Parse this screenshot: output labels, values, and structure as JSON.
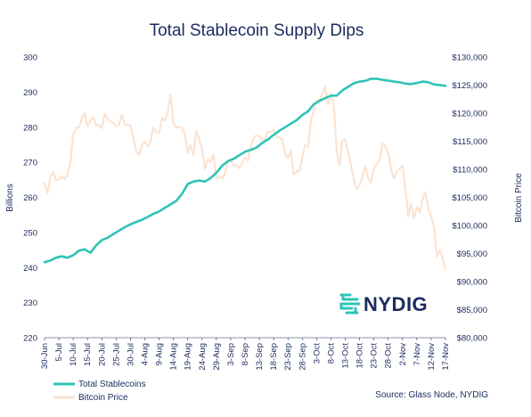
{
  "chart_data": {
    "type": "line",
    "title": "Total Stablecoin Supply Dips",
    "y_left_label": "Billions",
    "y_right_label": "Bitcoin Price",
    "y_left_range": [
      220,
      300
    ],
    "y_right_range": [
      80000,
      130000
    ],
    "y_left_ticks": [
      "220",
      "230",
      "240",
      "250",
      "260",
      "270",
      "280",
      "290",
      "300"
    ],
    "y_right_ticks": [
      "$80,000",
      "$85,000",
      "$90,000",
      "$95,000",
      "$100,000",
      "$105,000",
      "$110,000",
      "$115,000",
      "$120,000",
      "$125,000",
      "$130,000"
    ],
    "x_ticks": [
      "30-Jun",
      "5-Jul",
      "10-Jul",
      "15-Jul",
      "20-Jul",
      "25-Jul",
      "30-Jul",
      "4-Aug",
      "9-Aug",
      "14-Aug",
      "19-Aug",
      "24-Aug",
      "29-Aug",
      "3-Sep",
      "8-Sep",
      "13-Sep",
      "18-Sep",
      "23-Sep",
      "28-Sep",
      "3-Oct",
      "8-Oct",
      "13-Oct",
      "18-Oct",
      "23-Oct",
      "28-Oct",
      "2-Nov",
      "7-Nov",
      "12-Nov",
      "17-Nov"
    ],
    "x_start": "2025-06-30",
    "x_end": "2025-11-17",
    "grid": false,
    "legend_position": "bottom-left",
    "series": [
      {
        "name": "Total Stablecoins",
        "axis": "left",
        "color": "#2ec4b6",
        "points": [
          [
            "2025-06-30",
            241.5
          ],
          [
            "2025-07-02",
            242.0
          ],
          [
            "2025-07-04",
            242.8
          ],
          [
            "2025-07-06",
            243.2
          ],
          [
            "2025-07-08",
            242.8
          ],
          [
            "2025-07-10",
            243.5
          ],
          [
            "2025-07-12",
            244.8
          ],
          [
            "2025-07-14",
            245.2
          ],
          [
            "2025-07-16",
            244.2
          ],
          [
            "2025-07-18",
            246.3
          ],
          [
            "2025-07-20",
            247.8
          ],
          [
            "2025-07-22",
            248.5
          ],
          [
            "2025-07-24",
            249.5
          ],
          [
            "2025-07-26",
            250.5
          ],
          [
            "2025-07-28",
            251.5
          ],
          [
            "2025-07-30",
            252.3
          ],
          [
            "2025-08-01",
            253.0
          ],
          [
            "2025-08-03",
            253.6
          ],
          [
            "2025-08-05",
            254.4
          ],
          [
            "2025-08-07",
            255.3
          ],
          [
            "2025-08-09",
            256.0
          ],
          [
            "2025-08-11",
            257.0
          ],
          [
            "2025-08-13",
            258.0
          ],
          [
            "2025-08-15",
            259.0
          ],
          [
            "2025-08-17",
            261.0
          ],
          [
            "2025-08-19",
            263.8
          ],
          [
            "2025-08-21",
            264.5
          ],
          [
            "2025-08-23",
            264.8
          ],
          [
            "2025-08-25",
            264.5
          ],
          [
            "2025-08-27",
            265.5
          ],
          [
            "2025-08-29",
            267.0
          ],
          [
            "2025-08-31",
            269.0
          ],
          [
            "2025-09-02",
            270.3
          ],
          [
            "2025-09-04",
            271.0
          ],
          [
            "2025-09-06",
            272.0
          ],
          [
            "2025-09-08",
            273.0
          ],
          [
            "2025-09-10",
            273.5
          ],
          [
            "2025-09-12",
            274.2
          ],
          [
            "2025-09-14",
            275.5
          ],
          [
            "2025-09-16",
            276.5
          ],
          [
            "2025-09-18",
            277.8
          ],
          [
            "2025-09-20",
            279.0
          ],
          [
            "2025-09-22",
            280.0
          ],
          [
            "2025-09-24",
            281.0
          ],
          [
            "2025-09-26",
            282.0
          ],
          [
            "2025-09-28",
            283.5
          ],
          [
            "2025-09-30",
            284.5
          ],
          [
            "2025-10-02",
            286.5
          ],
          [
            "2025-10-04",
            287.5
          ],
          [
            "2025-10-06",
            288.3
          ],
          [
            "2025-10-08",
            289.0
          ],
          [
            "2025-10-10",
            289.0
          ],
          [
            "2025-10-12",
            290.5
          ],
          [
            "2025-10-14",
            291.5
          ],
          [
            "2025-10-16",
            292.5
          ],
          [
            "2025-10-18",
            293.0
          ],
          [
            "2025-10-20",
            293.2
          ],
          [
            "2025-10-22",
            293.8
          ],
          [
            "2025-10-24",
            293.8
          ],
          [
            "2025-10-26",
            293.5
          ],
          [
            "2025-10-28",
            293.3
          ],
          [
            "2025-10-30",
            293.0
          ],
          [
            "2025-11-01",
            292.8
          ],
          [
            "2025-11-03",
            292.4
          ],
          [
            "2025-11-05",
            292.3
          ],
          [
            "2025-11-07",
            292.6
          ],
          [
            "2025-11-09",
            293.0
          ],
          [
            "2025-11-11",
            292.8
          ],
          [
            "2025-11-13",
            292.2
          ],
          [
            "2025-11-15",
            292.0
          ],
          [
            "2025-11-17",
            291.8
          ]
        ]
      },
      {
        "name": "Bitcoin Price",
        "axis": "right",
        "color": "#fbe3d2",
        "points": [
          [
            "2025-06-30",
            107500
          ],
          [
            "2025-07-01",
            105800
          ],
          [
            "2025-07-02",
            108600
          ],
          [
            "2025-07-03",
            109500
          ],
          [
            "2025-07-04",
            108000
          ],
          [
            "2025-07-05",
            108200
          ],
          [
            "2025-07-06",
            108800
          ],
          [
            "2025-07-07",
            108300
          ],
          [
            "2025-07-08",
            108900
          ],
          [
            "2025-07-09",
            111200
          ],
          [
            "2025-07-10",
            116000
          ],
          [
            "2025-07-11",
            117500
          ],
          [
            "2025-07-12",
            117400
          ],
          [
            "2025-07-13",
            119000
          ],
          [
            "2025-07-14",
            120000
          ],
          [
            "2025-07-15",
            117700
          ],
          [
            "2025-07-16",
            118700
          ],
          [
            "2025-07-17",
            119300
          ],
          [
            "2025-07-18",
            117900
          ],
          [
            "2025-07-19",
            117800
          ],
          [
            "2025-07-20",
            117300
          ],
          [
            "2025-07-21",
            119900
          ],
          [
            "2025-07-22",
            119000
          ],
          [
            "2025-07-23",
            118500
          ],
          [
            "2025-07-24",
            118300
          ],
          [
            "2025-07-25",
            117600
          ],
          [
            "2025-07-26",
            118000
          ],
          [
            "2025-07-27",
            119700
          ],
          [
            "2025-07-28",
            118000
          ],
          [
            "2025-07-29",
            117900
          ],
          [
            "2025-07-30",
            117800
          ],
          [
            "2025-07-31",
            115700
          ],
          [
            "2025-08-01",
            113200
          ],
          [
            "2025-08-02",
            112500
          ],
          [
            "2025-08-03",
            114200
          ],
          [
            "2025-08-04",
            115000
          ],
          [
            "2025-08-05",
            114000
          ],
          [
            "2025-08-06",
            114900
          ],
          [
            "2025-08-07",
            117500
          ],
          [
            "2025-08-08",
            116600
          ],
          [
            "2025-08-09",
            116500
          ],
          [
            "2025-08-10",
            119200
          ],
          [
            "2025-08-11",
            118700
          ],
          [
            "2025-08-12",
            120100
          ],
          [
            "2025-08-13",
            123300
          ],
          [
            "2025-08-14",
            118300
          ],
          [
            "2025-08-15",
            117400
          ],
          [
            "2025-08-16",
            117500
          ],
          [
            "2025-08-17",
            117400
          ],
          [
            "2025-08-18",
            116200
          ],
          [
            "2025-08-19",
            112900
          ],
          [
            "2025-08-20",
            114300
          ],
          [
            "2025-08-21",
            112500
          ],
          [
            "2025-08-22",
            116900
          ],
          [
            "2025-08-23",
            115400
          ],
          [
            "2025-08-24",
            113500
          ],
          [
            "2025-08-25",
            110100
          ],
          [
            "2025-08-26",
            111800
          ],
          [
            "2025-08-27",
            111300
          ],
          [
            "2025-08-28",
            112600
          ],
          [
            "2025-08-29",
            108400
          ],
          [
            "2025-08-30",
            108800
          ],
          [
            "2025-08-31",
            108300
          ],
          [
            "2025-09-01",
            109300
          ],
          [
            "2025-09-02",
            111200
          ],
          [
            "2025-09-03",
            111700
          ],
          [
            "2025-09-04",
            110700
          ],
          [
            "2025-09-05",
            110700
          ],
          [
            "2025-09-06",
            110200
          ],
          [
            "2025-09-07",
            111200
          ],
          [
            "2025-09-08",
            112100
          ],
          [
            "2025-09-09",
            111500
          ],
          [
            "2025-09-10",
            113900
          ],
          [
            "2025-09-11",
            115500
          ],
          [
            "2025-09-12",
            116100
          ],
          [
            "2025-09-13",
            115900
          ],
          [
            "2025-09-14",
            115300
          ],
          [
            "2025-09-15",
            115300
          ],
          [
            "2025-09-16",
            116800
          ],
          [
            "2025-09-17",
            116500
          ],
          [
            "2025-09-18",
            117100
          ],
          [
            "2025-09-19",
            115700
          ],
          [
            "2025-09-20",
            115700
          ],
          [
            "2025-09-21",
            115300
          ],
          [
            "2025-09-22",
            112700
          ],
          [
            "2025-09-23",
            112000
          ],
          [
            "2025-09-24",
            113300
          ],
          [
            "2025-09-25",
            109000
          ],
          [
            "2025-09-26",
            109600
          ],
          [
            "2025-09-27",
            109700
          ],
          [
            "2025-09-28",
            112100
          ],
          [
            "2025-09-29",
            114300
          ],
          [
            "2025-09-30",
            114000
          ],
          [
            "2025-10-01",
            118600
          ],
          [
            "2025-10-02",
            120500
          ],
          [
            "2025-10-03",
            122300
          ],
          [
            "2025-10-04",
            122400
          ],
          [
            "2025-10-05",
            123500
          ],
          [
            "2025-10-06",
            124800
          ],
          [
            "2025-10-07",
            121500
          ],
          [
            "2025-10-08",
            123300
          ],
          [
            "2025-10-09",
            121700
          ],
          [
            "2025-10-10",
            113200
          ],
          [
            "2025-10-11",
            110700
          ],
          [
            "2025-10-12",
            115100
          ],
          [
            "2025-10-13",
            115300
          ],
          [
            "2025-10-14",
            113100
          ],
          [
            "2025-10-15",
            110800
          ],
          [
            "2025-10-16",
            108200
          ],
          [
            "2025-10-17",
            106500
          ],
          [
            "2025-10-18",
            107200
          ],
          [
            "2025-10-19",
            108700
          ],
          [
            "2025-10-20",
            110600
          ],
          [
            "2025-10-21",
            108500
          ],
          [
            "2025-10-22",
            107600
          ],
          [
            "2025-10-23",
            110100
          ],
          [
            "2025-10-24",
            111000
          ],
          [
            "2025-10-25",
            111600
          ],
          [
            "2025-10-26",
            114600
          ],
          [
            "2025-10-27",
            114100
          ],
          [
            "2025-10-28",
            112900
          ],
          [
            "2025-10-29",
            110100
          ],
          [
            "2025-10-30",
            108300
          ],
          [
            "2025-10-31",
            109600
          ],
          [
            "2025-11-01",
            110100
          ],
          [
            "2025-11-02",
            110600
          ],
          [
            "2025-11-03",
            106500
          ],
          [
            "2025-11-04",
            101600
          ],
          [
            "2025-11-05",
            103900
          ],
          [
            "2025-11-06",
            101300
          ],
          [
            "2025-11-07",
            103300
          ],
          [
            "2025-11-08",
            102300
          ],
          [
            "2025-11-09",
            104700
          ],
          [
            "2025-11-10",
            105900
          ],
          [
            "2025-11-11",
            103000
          ],
          [
            "2025-11-12",
            101600
          ],
          [
            "2025-11-13",
            99700
          ],
          [
            "2025-11-14",
            94400
          ],
          [
            "2025-11-15",
            95600
          ],
          [
            "2025-11-16",
            94200
          ],
          [
            "2025-11-17",
            92100
          ]
        ]
      }
    ]
  },
  "legend": {
    "items": [
      {
        "label": "Total Stablecoins",
        "color": "#2ec4b6"
      },
      {
        "label": "Bitcoin Price",
        "color": "#fbe3d2"
      }
    ]
  },
  "source": "Source: Glass Node, NYDIG",
  "logo": {
    "text": "NYDIG",
    "color": "#2ec4b6",
    "icon": "nydig-logo-icon"
  }
}
